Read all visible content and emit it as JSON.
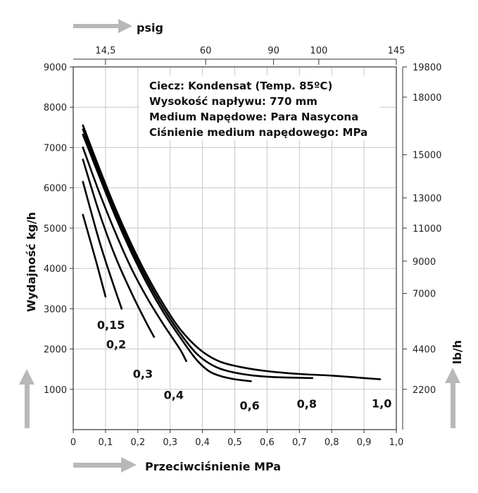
{
  "chart_data": {
    "type": "line",
    "xlabel": "Przeciwciśnienie MPa",
    "ylabel": "Wydajność kg/h",
    "xlim": [
      0,
      1.0
    ],
    "ylim": [
      0,
      9000
    ],
    "x_ticks": [
      "0",
      "0,1",
      "0,2",
      "0,3",
      "0,4",
      "0,5",
      "0,6",
      "0,7",
      "0,8",
      "0,9",
      "1,0"
    ],
    "y_ticks": [
      "9000",
      "8000",
      "7000",
      "6000",
      "5000",
      "4000",
      "3000",
      "2000",
      "1000"
    ],
    "top_axis": {
      "label": "psig",
      "ticks": [
        {
          "label": "14,5",
          "mpa": 0.1
        },
        {
          "label": "60",
          "mpa": 0.41
        },
        {
          "label": "90",
          "mpa": 0.62
        },
        {
          "label": "100",
          "mpa": 0.76
        },
        {
          "label": "145",
          "mpa": 1.0
        }
      ]
    },
    "right_axis": {
      "label": "lb/h",
      "ticks": [
        {
          "label": "19800",
          "kgh": 9000
        },
        {
          "label": "18000",
          "kgh": 8250
        },
        {
          "label": "15000",
          "kgh": 6820
        },
        {
          "label": "13000",
          "kgh": 5750
        },
        {
          "label": "11000",
          "kgh": 5000
        },
        {
          "label": "9000",
          "kgh": 4180
        },
        {
          "label": "7000",
          "kgh": 3380
        },
        {
          "label": "4400",
          "kgh": 2000
        },
        {
          "label": "2200",
          "kgh": 1000
        }
      ]
    },
    "info": [
      "Ciecz: Kondensat (Temp. 85ºC)",
      "Wysokość napływu: 770 mm",
      "Medium Napędowe: Para Nasycona",
      "Ciśnienie medium napędowego: MPa"
    ],
    "series": [
      {
        "name": "0,15",
        "x": [
          0.03,
          0.07,
          0.1
        ],
        "y": [
          5330,
          4200,
          3300
        ]
      },
      {
        "name": "0,2",
        "x": [
          0.03,
          0.08,
          0.12,
          0.15
        ],
        "y": [
          6150,
          4700,
          3700,
          3000
        ]
      },
      {
        "name": "0,3",
        "x": [
          0.03,
          0.08,
          0.13,
          0.18,
          0.22,
          0.25
        ],
        "y": [
          6700,
          5400,
          4300,
          3400,
          2750,
          2300
        ]
      },
      {
        "name": "0,4",
        "x": [
          0.03,
          0.08,
          0.13,
          0.18,
          0.23,
          0.28,
          0.33,
          0.35
        ],
        "y": [
          7000,
          5900,
          4900,
          4000,
          3250,
          2600,
          2000,
          1700
        ]
      },
      {
        "name": "0,6",
        "x": [
          0.03,
          0.08,
          0.13,
          0.18,
          0.23,
          0.28,
          0.33,
          0.38,
          0.42,
          0.46,
          0.5,
          0.55
        ],
        "y": [
          7320,
          6300,
          5300,
          4400,
          3600,
          2900,
          2300,
          1750,
          1450,
          1320,
          1250,
          1200
        ]
      },
      {
        "name": "0,8",
        "x": [
          0.03,
          0.08,
          0.13,
          0.18,
          0.23,
          0.28,
          0.33,
          0.38,
          0.43,
          0.48,
          0.55,
          0.63,
          0.74
        ],
        "y": [
          7450,
          6400,
          5400,
          4500,
          3700,
          3000,
          2400,
          1900,
          1600,
          1450,
          1350,
          1300,
          1280
        ]
      },
      {
        "name": "1,0",
        "x": [
          0.03,
          0.08,
          0.13,
          0.18,
          0.23,
          0.28,
          0.33,
          0.39,
          0.45,
          0.52,
          0.6,
          0.7,
          0.8,
          0.9,
          0.95
        ],
        "y": [
          7550,
          6500,
          5500,
          4600,
          3800,
          3100,
          2500,
          2000,
          1700,
          1550,
          1450,
          1380,
          1340,
          1280,
          1250
        ]
      }
    ]
  }
}
